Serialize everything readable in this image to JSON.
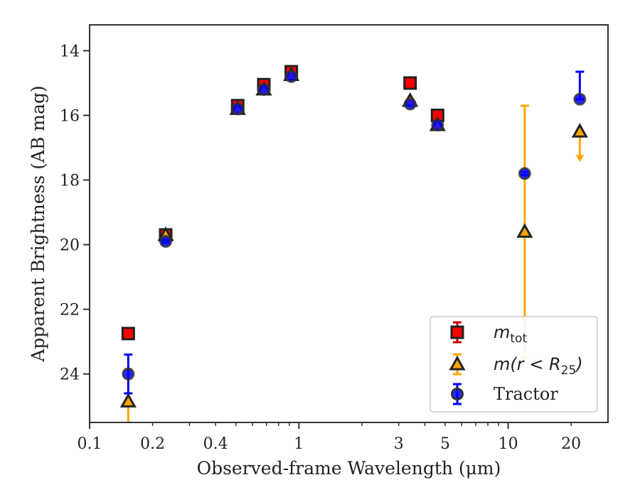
{
  "chart_data": {
    "type": "scatter",
    "xlabel": "Observed-frame Wavelength (μm)",
    "ylabel": "Apparent Brightness (AB mag)",
    "xscale": "log",
    "xlim": [
      0.1,
      30
    ],
    "ylim": [
      25.5,
      13.2
    ],
    "y_inverted": true,
    "x_tick_labels": [
      "0.1",
      "0.2",
      "0.4",
      "1",
      "3",
      "5",
      "10",
      "20"
    ],
    "x_tick_values": [
      0.1,
      0.2,
      0.4,
      1,
      3,
      5,
      10,
      20
    ],
    "y_tick_labels": [
      "14",
      "16",
      "18",
      "20",
      "22",
      "24"
    ],
    "y_tick_values": [
      14,
      16,
      18,
      20,
      22,
      24
    ],
    "legend_position": "lower right",
    "grid": false,
    "series": [
      {
        "name": "m_tot",
        "legend_main": "m",
        "legend_sub": "tot",
        "color": "#ff0000",
        "edge_color": "#222222",
        "marker": "square",
        "points": [
          {
            "x": 0.153,
            "y": 22.75,
            "err": 0.1
          },
          {
            "x": 0.231,
            "y": 19.7,
            "err": 0.05
          },
          {
            "x": 0.51,
            "y": 15.7,
            "err": 0.05
          },
          {
            "x": 0.68,
            "y": 15.05,
            "err": 0.05
          },
          {
            "x": 0.92,
            "y": 14.65,
            "err": 0.05
          },
          {
            "x": 3.4,
            "y": 15.0,
            "err": 0.05
          },
          {
            "x": 4.6,
            "y": 16.0,
            "err": 0.05
          }
        ]
      },
      {
        "name": "m(r < R25)",
        "legend_main": "m(r < R",
        "legend_sub": "25",
        "legend_end": ")",
        "color": "#ffa500",
        "edge_color": "#222222",
        "marker": "triangle",
        "points": [
          {
            "x": 0.153,
            "y": 24.85,
            "err_low": 4.4,
            "err_high": 1.0
          },
          {
            "x": 0.231,
            "y": 19.7,
            "err": 0.05
          },
          {
            "x": 0.51,
            "y": 15.8,
            "err": 0.05
          },
          {
            "x": 0.68,
            "y": 15.2,
            "err": 0.05
          },
          {
            "x": 0.92,
            "y": 14.75,
            "err": 0.05
          },
          {
            "x": 3.4,
            "y": 15.55,
            "err": 0.05
          },
          {
            "x": 4.6,
            "y": 16.3,
            "err": 0.05
          },
          {
            "x": 12.0,
            "y": 19.6,
            "err_low": 3.9,
            "err_high": 3.9
          },
          {
            "x": 22.0,
            "y": 16.5,
            "upper_limit": true,
            "arrow_to": 17.4
          }
        ]
      },
      {
        "name": "Tractor",
        "color": "#0000ff",
        "edge_color": "#333333",
        "marker": "circle",
        "points": [
          {
            "x": 0.153,
            "y": 24.0,
            "err": 0.6
          },
          {
            "x": 0.231,
            "y": 19.9,
            "err": 0.05
          },
          {
            "x": 0.51,
            "y": 15.8,
            "err": 0.05
          },
          {
            "x": 0.68,
            "y": 15.2,
            "err": 0.05
          },
          {
            "x": 0.92,
            "y": 14.8,
            "err": 0.05
          },
          {
            "x": 3.4,
            "y": 15.65,
            "err": 0.05
          },
          {
            "x": 4.6,
            "y": 16.3,
            "err": 0.05
          },
          {
            "x": 12.0,
            "y": 17.8,
            "err": 0.05
          },
          {
            "x": 22.0,
            "y": 15.5,
            "err_low": 0.0,
            "err_high": 0.85
          }
        ]
      }
    ]
  }
}
